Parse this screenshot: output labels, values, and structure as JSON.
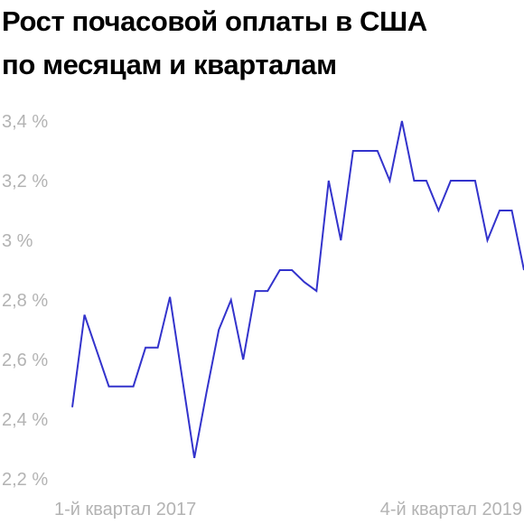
{
  "title_lines": [
    "Рост почасовой оплаты в США",
    "по месяцам и кварталам"
  ],
  "colors": {
    "line": "#3333cc",
    "tick_text": "#b3b3b3",
    "title": "#000000",
    "background": "#ffffff"
  },
  "chart_data": {
    "type": "line",
    "title": "Рост почасовой оплаты в США по месяцам и кварталам",
    "y_unit": "%",
    "ylim": [
      2.2,
      3.4
    ],
    "y_ticks": [
      3.4,
      3.2,
      3.0,
      2.8,
      2.6,
      2.4,
      2.2
    ],
    "y_tick_labels": [
      "3,4 %",
      "3,2 %",
      "3 %",
      "2,8 %",
      "2,6 %",
      "2,4 %",
      "2,2 %"
    ],
    "x_tick_labels": [
      "1-й квартал 2017",
      "4-й квартал 2019"
    ],
    "grid": false,
    "series": [
      {
        "values": [
          2.44,
          2.75,
          2.63,
          2.51,
          2.51,
          2.51,
          2.64,
          2.64,
          2.81,
          2.54,
          2.27,
          2.49,
          2.7,
          2.8,
          2.6,
          2.83,
          2.83,
          2.9,
          2.9,
          2.86,
          2.83,
          3.2,
          3.0,
          3.3,
          3.3,
          3.3,
          3.2,
          3.4,
          3.2,
          3.2,
          3.1,
          3.2,
          3.2,
          3.2,
          3.0,
          3.1,
          3.1,
          2.9
        ]
      }
    ]
  }
}
